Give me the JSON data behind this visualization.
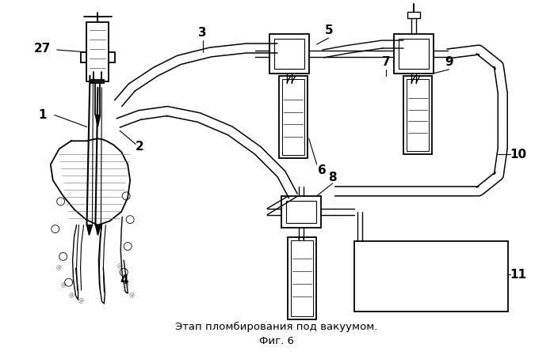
{
  "caption_line1": "Этап пломбирования под вакуумом.",
  "caption_line2": "Фиг. 6",
  "bg_color": "#ffffff"
}
